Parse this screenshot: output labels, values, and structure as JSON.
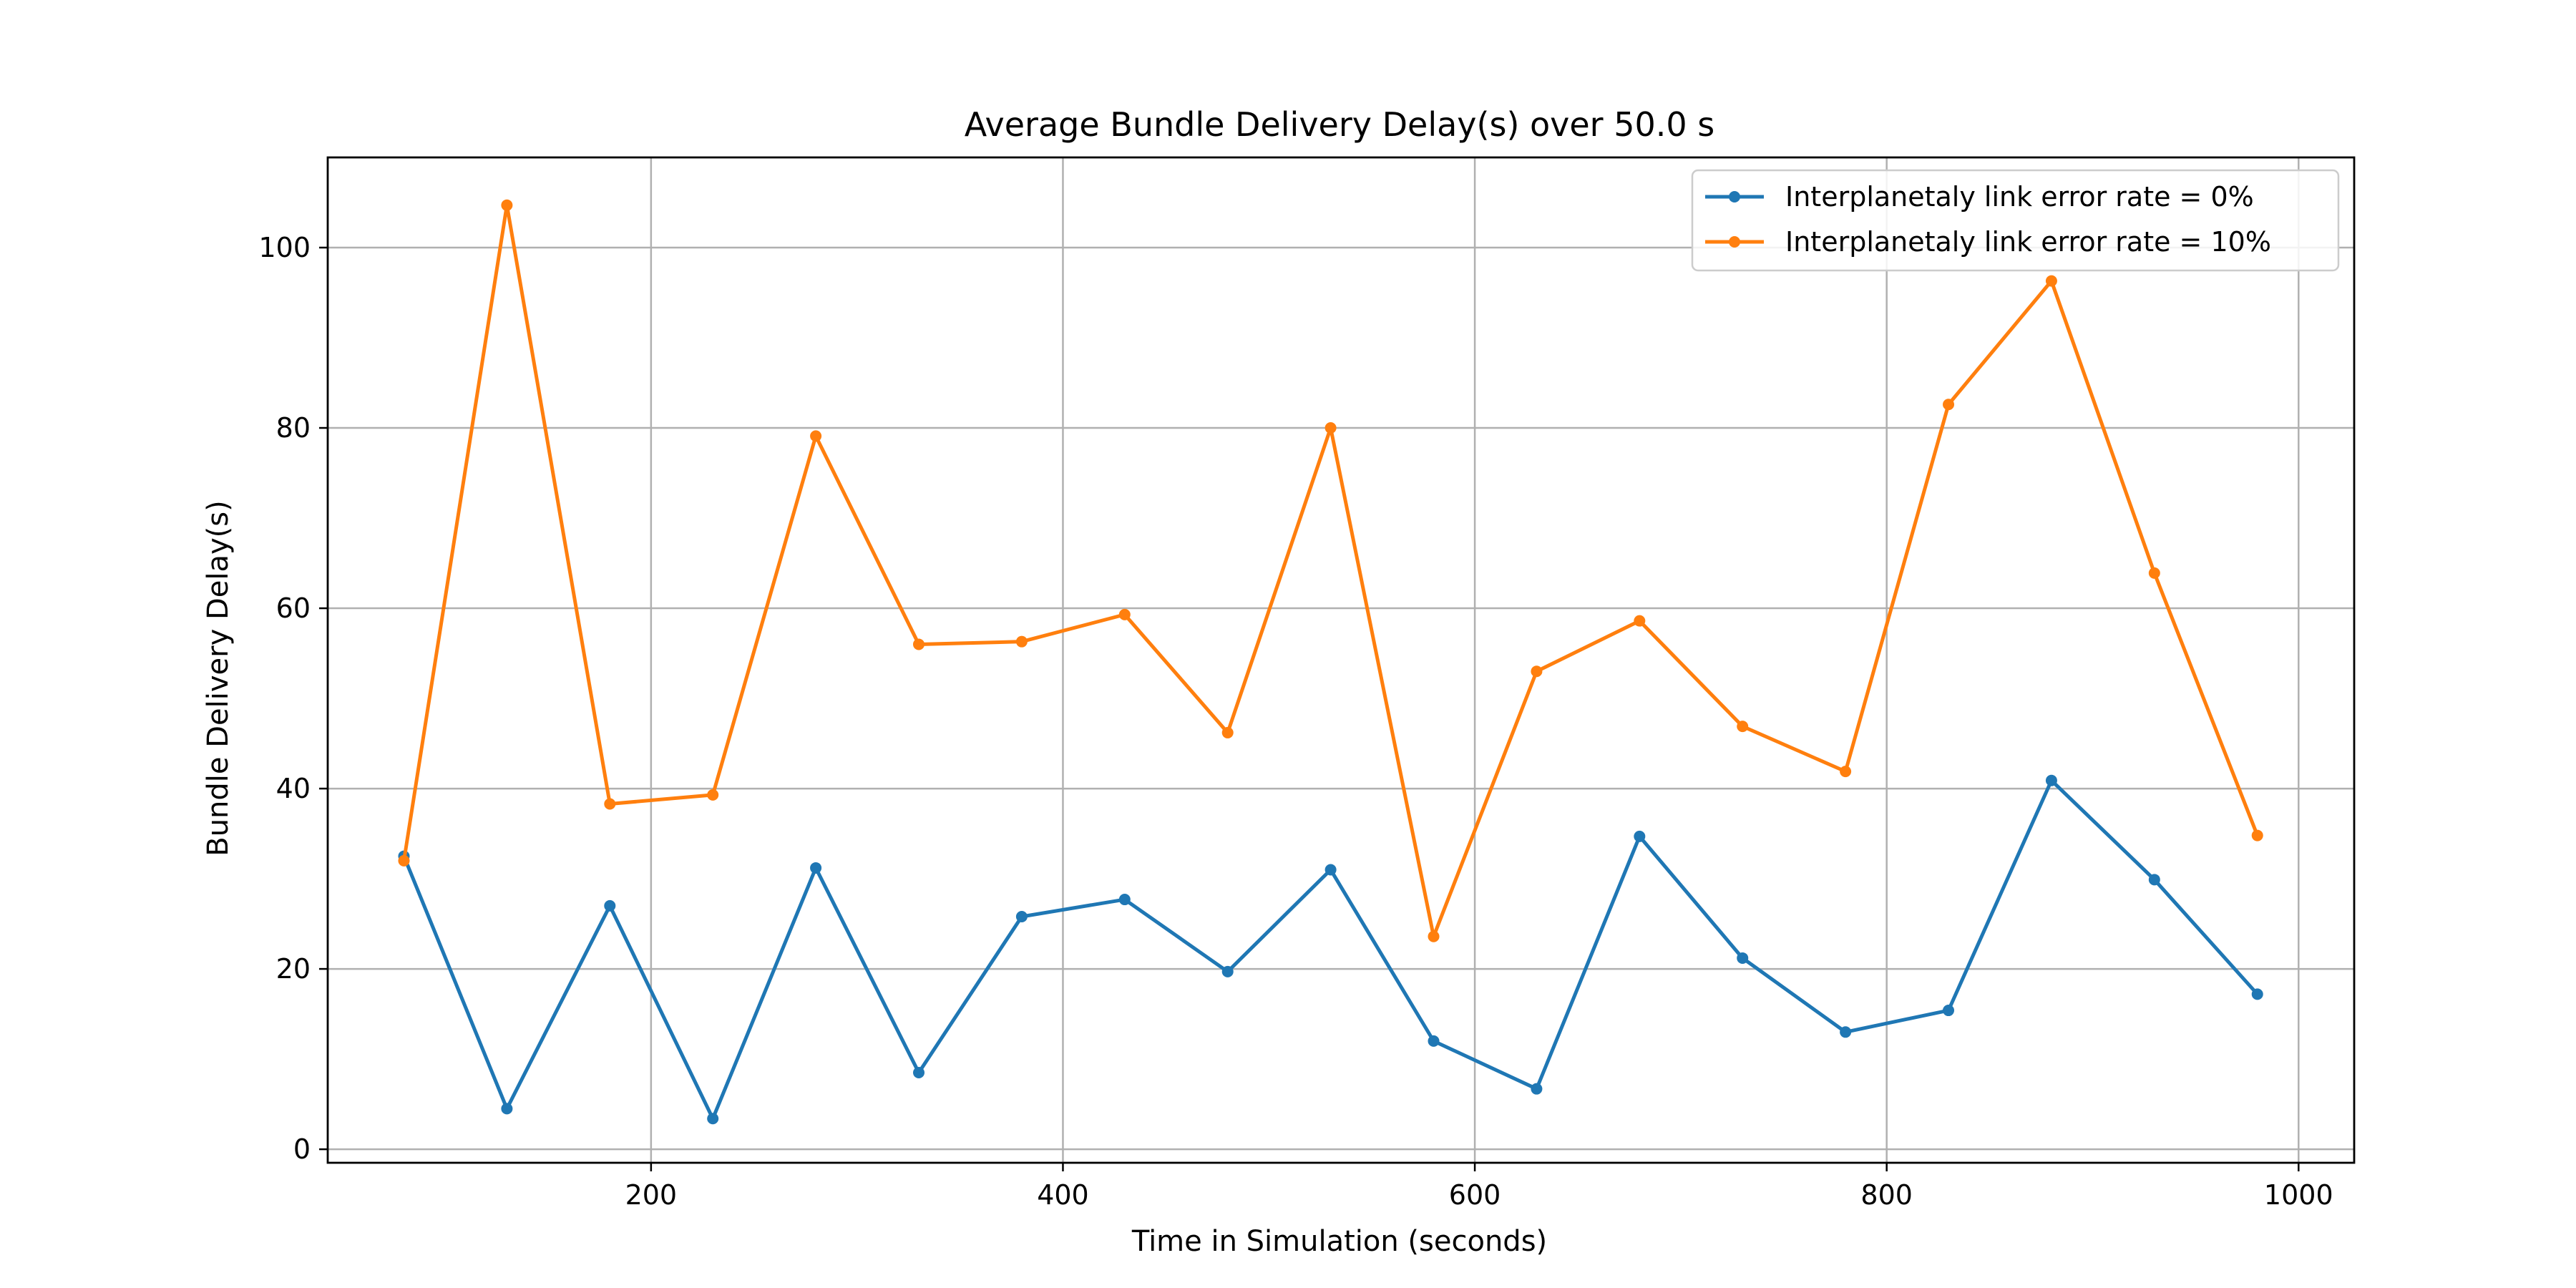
{
  "chart_data": {
    "type": "line",
    "title": "Average Bundle Delivery Delay(s) over 50.0 s",
    "xlabel": "Time in Simulation (seconds)",
    "ylabel": "Bundle Delivery Delay(s)",
    "xlim": [
      43,
      1027
    ],
    "ylim": [
      -1.5,
      110
    ],
    "xticks": [
      200,
      400,
      600,
      800,
      1000
    ],
    "yticks": [
      0,
      20,
      40,
      60,
      80,
      100
    ],
    "grid": true,
    "legend_position": "top-right",
    "x": [
      80,
      130,
      180,
      230,
      280,
      330,
      380,
      430,
      480,
      530,
      580,
      630,
      680,
      730,
      780,
      830,
      880,
      930,
      980
    ],
    "series": [
      {
        "name": "Interplanetaly link error rate = 0%",
        "color": "#1f77b4",
        "values": [
          32.5,
          4.5,
          27.0,
          3.4,
          31.2,
          8.5,
          25.8,
          27.7,
          19.7,
          31.0,
          12.0,
          6.7,
          34.7,
          21.2,
          13.0,
          15.4,
          40.9,
          29.9,
          17.2
        ]
      },
      {
        "name": "Interplanetaly link error rate = 10%",
        "color": "#ff7f0e",
        "values": [
          32.0,
          104.7,
          38.3,
          39.3,
          79.1,
          56.0,
          56.3,
          59.3,
          46.2,
          80.0,
          23.6,
          53.0,
          58.6,
          46.9,
          41.9,
          82.6,
          96.3,
          63.9,
          34.8
        ]
      }
    ]
  }
}
